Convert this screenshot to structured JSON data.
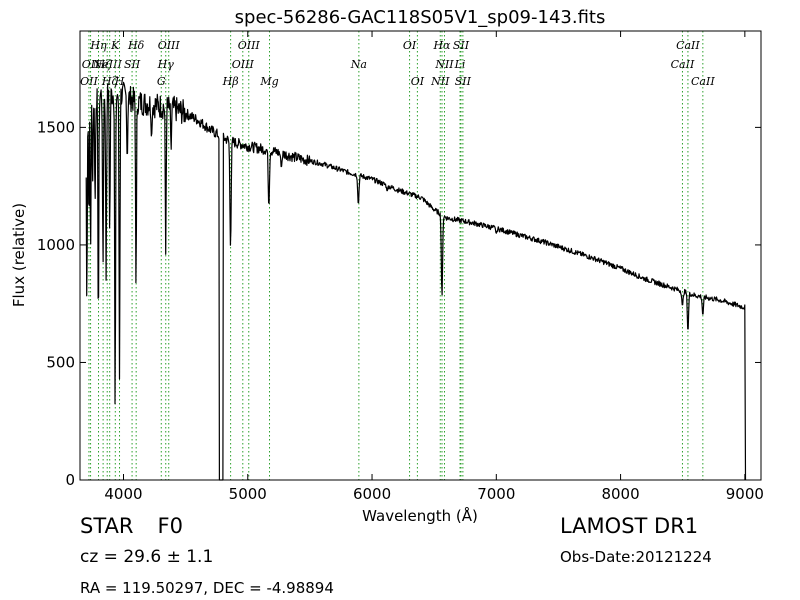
{
  "chart_data": {
    "type": "line",
    "title": "spec-56286-GAC118S05V1_sp09-143.fits",
    "xlabel": "Wavelength (Å)",
    "ylabel": "Flux (relative)",
    "xlim": [
      3650,
      9130
    ],
    "ylim": [
      0,
      1910
    ],
    "x_ticks": [
      4000,
      5000,
      6000,
      7000,
      8000,
      9000
    ],
    "x_tick_labels": [
      "4000",
      "5000",
      "6000",
      "7000",
      "8000",
      "9000"
    ],
    "y_ticks": [
      0,
      500,
      1000,
      1500
    ],
    "y_tick_labels": [
      "0",
      "500",
      "1000",
      "1500"
    ],
    "grid": false,
    "line_color": "#000000",
    "marker_color": "#2ca02c",
    "spectrum": {
      "continuum": [
        [
          3700,
          1600
        ],
        [
          3800,
          1640
        ],
        [
          3900,
          1640
        ],
        [
          4000,
          1640
        ],
        [
          4100,
          1610
        ],
        [
          4200,
          1600
        ],
        [
          4400,
          1580
        ],
        [
          4500,
          1560
        ],
        [
          4600,
          1530
        ],
        [
          4700,
          1490
        ],
        [
          4800,
          1455
        ],
        [
          4900,
          1435
        ],
        [
          5000,
          1420
        ],
        [
          5200,
          1400
        ],
        [
          5400,
          1370
        ],
        [
          5600,
          1345
        ],
        [
          5800,
          1310
        ],
        [
          6000,
          1280
        ],
        [
          6200,
          1235
        ],
        [
          6400,
          1200
        ],
        [
          6500,
          1150
        ],
        [
          6600,
          1115
        ],
        [
          6800,
          1095
        ],
        [
          7000,
          1070
        ],
        [
          7200,
          1040
        ],
        [
          7400,
          1010
        ],
        [
          7600,
          975
        ],
        [
          7800,
          940
        ],
        [
          8000,
          900
        ],
        [
          8200,
          855
        ],
        [
          8400,
          820
        ],
        [
          8600,
          785
        ],
        [
          8800,
          765
        ],
        [
          8990,
          735
        ]
      ],
      "absorption": [
        [
          3705,
          750
        ],
        [
          3722,
          1100
        ],
        [
          3735,
          980
        ],
        [
          3751,
          1260
        ],
        [
          3771,
          1180
        ],
        [
          3798,
          630
        ],
        [
          3835,
          900
        ],
        [
          3860,
          850
        ],
        [
          3889,
          1050
        ],
        [
          3933,
          270
        ],
        [
          3968,
          430
        ],
        [
          4030,
          1350
        ],
        [
          4101,
          810
        ],
        [
          4226,
          1450
        ],
        [
          4340,
          960
        ],
        [
          4383,
          1400
        ],
        [
          4861,
          990
        ],
        [
          5170,
          1160
        ],
        [
          5270,
          1330
        ],
        [
          5890,
          1170
        ],
        [
          6122,
          1230
        ],
        [
          6563,
          780
        ],
        [
          7000,
          1050
        ],
        [
          8498,
          740
        ],
        [
          8542,
          630
        ],
        [
          8662,
          700
        ]
      ],
      "gap": [
        4770,
        4800
      ],
      "cutoff": 9000
    },
    "line_markers": [
      {
        "x": 3722,
        "label": "OII",
        "row": 2
      },
      {
        "x": 3735,
        "label": "OII",
        "row": 1
      },
      {
        "x": 3799,
        "label": "Hη",
        "row": 0
      },
      {
        "x": 3836,
        "label": "Hζ",
        "row": 1
      },
      {
        "x": 3869,
        "label": "NeIII",
        "row": 1
      },
      {
        "x": 3889,
        "label": "Hζ",
        "row": 2
      },
      {
        "x": 3934,
        "label": "K",
        "row": 0
      },
      {
        "x": 3968,
        "label": "H",
        "row": 2
      },
      {
        "x": 4069,
        "label": "SII",
        "row": 1
      },
      {
        "x": 4102,
        "label": "Hδ",
        "row": 0
      },
      {
        "x": 4304,
        "label": "G",
        "row": 2
      },
      {
        "x": 4340,
        "label": "Hγ",
        "row": 1
      },
      {
        "x": 4364,
        "label": "OIII",
        "row": 0
      },
      {
        "x": 4862,
        "label": "Hβ",
        "row": 2
      },
      {
        "x": 4960,
        "label": "OIII",
        "row": 1
      },
      {
        "x": 5008,
        "label": "OIII",
        "row": 0
      },
      {
        "x": 5175,
        "label": "Mg",
        "row": 2
      },
      {
        "x": 5894,
        "label": "Na",
        "row": 1
      },
      {
        "x": 6302,
        "label": "OI",
        "row": 0
      },
      {
        "x": 6365,
        "label": "OI",
        "row": 2
      },
      {
        "x": 6549,
        "label": "NII",
        "row": 2
      },
      {
        "x": 6563,
        "label": "Hα",
        "row": 0
      },
      {
        "x": 6583,
        "label": "NII",
        "row": 1
      },
      {
        "x": 6708,
        "label": "Li",
        "row": 1
      },
      {
        "x": 6716,
        "label": "SII",
        "row": 0
      },
      {
        "x": 6731,
        "label": "SII",
        "row": 2
      },
      {
        "x": 8498,
        "label": "CaII",
        "row": 1
      },
      {
        "x": 8542,
        "label": "CaII",
        "row": 0
      },
      {
        "x": 8662,
        "label": "CaII",
        "row": 2
      }
    ]
  },
  "info": {
    "object_class": "STAR",
    "subclass": "F0",
    "survey": "LAMOST DR1",
    "redshift": "cz = 29.6 ± 1.1",
    "obs_date": "Obs-Date:20121224",
    "coordinates": "RA = 119.50297, DEC = -4.98894"
  }
}
